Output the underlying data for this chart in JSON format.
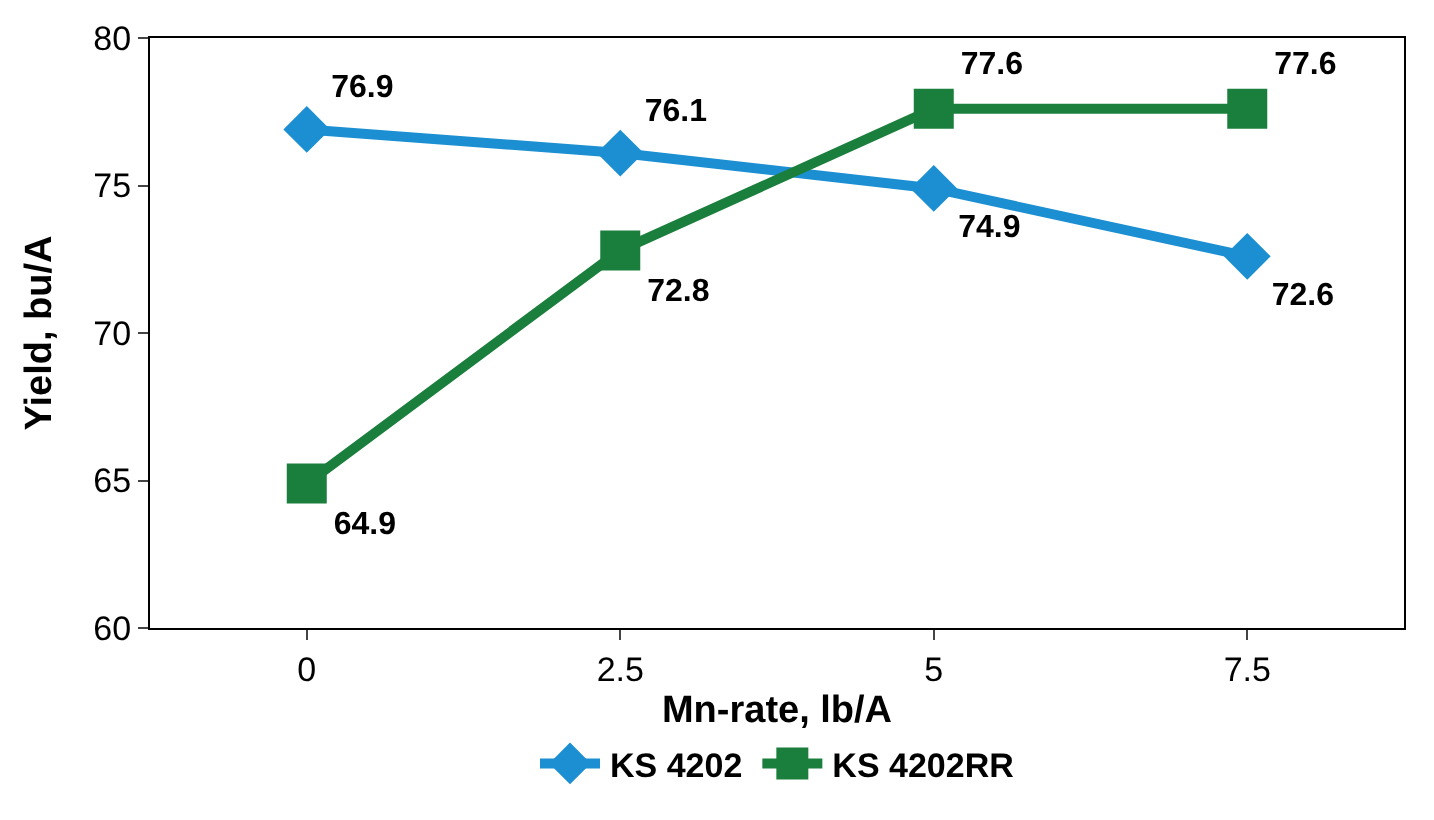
{
  "chart_data": {
    "type": "line",
    "xlabel": "Mn-rate, lb/A",
    "ylabel": "Yield, bu/A",
    "categories": [
      "0",
      "2.5",
      "5",
      "7.5"
    ],
    "series": [
      {
        "name": "KS 4202",
        "color": "#1b8fd2",
        "marker": "diamond",
        "values": [
          76.9,
          76.1,
          74.9,
          72.6
        ]
      },
      {
        "name": "KS 4202RR",
        "color": "#1a7f3c",
        "marker": "square",
        "values": [
          64.9,
          72.8,
          77.6,
          77.6
        ]
      }
    ],
    "ylim": [
      60,
      80
    ],
    "yticks": [
      60,
      65,
      70,
      75,
      80
    ],
    "data_labels": true,
    "legend": "bottom",
    "line_style": "solid"
  }
}
